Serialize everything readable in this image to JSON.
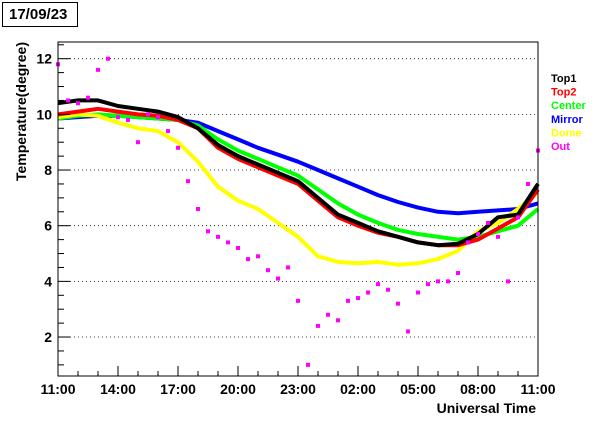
{
  "date_label": "17/09/23",
  "chart_data": {
    "type": "line",
    "title": "",
    "xlabel": "Universal Time",
    "ylabel": "Temperature(degree)",
    "x_ticks": [
      "11:00",
      "14:00",
      "17:00",
      "20:00",
      "23:00",
      "02:00",
      "05:00",
      "08:00",
      "11:00"
    ],
    "x_range_hours": [
      0,
      24
    ],
    "ylim": [
      0.6,
      12.6
    ],
    "y_ticks": [
      2,
      4,
      6,
      8,
      10,
      12
    ],
    "grid": "horizontal dotted",
    "legend_placement": "right",
    "series": [
      {
        "name": "Top1",
        "color": "#000000",
        "style": "line",
        "x": [
          0,
          1,
          2,
          3,
          4,
          5,
          6,
          7,
          8,
          9,
          10,
          11,
          12,
          13,
          14,
          15,
          16,
          17,
          18,
          19,
          20,
          21,
          22,
          23,
          24
        ],
        "y": [
          10.4,
          10.5,
          10.5,
          10.3,
          10.2,
          10.1,
          9.9,
          9.5,
          8.9,
          8.5,
          8.2,
          7.9,
          7.6,
          7.0,
          6.4,
          6.1,
          5.8,
          5.6,
          5.4,
          5.3,
          5.35,
          5.7,
          6.3,
          6.4,
          7.5
        ]
      },
      {
        "name": "Top2",
        "color": "#ff0000",
        "style": "line",
        "x": [
          0,
          1,
          2,
          3,
          4,
          5,
          6,
          7,
          8,
          9,
          10,
          11,
          12,
          13,
          14,
          15,
          16,
          17,
          18,
          19,
          20,
          21,
          22,
          23,
          24
        ],
        "y": [
          10.0,
          10.1,
          10.2,
          10.1,
          10.0,
          9.95,
          9.8,
          9.5,
          8.8,
          8.4,
          8.1,
          7.8,
          7.5,
          6.9,
          6.3,
          6.0,
          5.75,
          5.6,
          5.4,
          5.3,
          5.3,
          5.5,
          5.9,
          6.3,
          7.3
        ]
      },
      {
        "name": "Center",
        "color": "#00ff00",
        "style": "line",
        "x": [
          0,
          1,
          2,
          3,
          4,
          5,
          6,
          7,
          8,
          9,
          10,
          11,
          12,
          13,
          14,
          15,
          16,
          17,
          18,
          19,
          20,
          21,
          22,
          23,
          24
        ],
        "y": [
          9.85,
          9.95,
          10.0,
          9.95,
          9.9,
          9.85,
          9.8,
          9.6,
          9.1,
          8.7,
          8.4,
          8.1,
          7.8,
          7.3,
          6.8,
          6.4,
          6.1,
          5.85,
          5.7,
          5.6,
          5.5,
          5.6,
          5.8,
          6.0,
          6.6
        ]
      },
      {
        "name": "Mirror",
        "color": "#0000ff",
        "style": "line",
        "x": [
          0,
          1,
          2,
          3,
          4,
          5,
          6,
          7,
          8,
          9,
          10,
          11,
          12,
          13,
          14,
          15,
          16,
          17,
          18,
          19,
          20,
          21,
          22,
          23,
          24
        ],
        "y": [
          9.85,
          9.9,
          9.95,
          9.95,
          9.9,
          9.85,
          9.8,
          9.7,
          9.4,
          9.1,
          8.8,
          8.55,
          8.3,
          8.0,
          7.7,
          7.4,
          7.1,
          6.85,
          6.65,
          6.5,
          6.45,
          6.5,
          6.55,
          6.6,
          6.8
        ]
      },
      {
        "name": "Dome",
        "color": "#ffff00",
        "style": "line",
        "x": [
          0,
          1,
          2,
          3,
          4,
          5,
          6,
          7,
          8,
          9,
          10,
          11,
          12,
          13,
          14,
          15,
          16,
          17,
          18,
          19,
          20,
          21,
          22,
          23,
          24
        ],
        "y": [
          9.9,
          10.0,
          9.95,
          9.7,
          9.5,
          9.4,
          9.0,
          8.3,
          7.4,
          6.9,
          6.6,
          6.1,
          5.6,
          4.9,
          4.7,
          4.65,
          4.7,
          4.6,
          4.65,
          4.8,
          5.1,
          5.8,
          6.1,
          6.6,
          7.2
        ]
      },
      {
        "name": "Out",
        "color": "#ff00ff",
        "style": "points",
        "x": [
          0,
          0.5,
          1,
          1.5,
          2,
          2.5,
          3,
          3.5,
          4,
          4.5,
          5,
          5.5,
          6,
          6.5,
          7,
          7.5,
          8,
          8.5,
          9,
          9.5,
          10,
          10.5,
          11,
          11.5,
          12,
          12.5,
          13,
          13.5,
          14,
          14.5,
          15,
          15.5,
          16,
          16.5,
          17,
          17.5,
          18,
          18.5,
          19,
          19.5,
          20,
          20.5,
          21,
          21.5,
          22,
          22.5,
          23,
          23.5,
          24
        ],
        "y": [
          11.8,
          10.5,
          10.4,
          10.6,
          11.6,
          12.0,
          9.9,
          9.8,
          9.0,
          10.0,
          9.9,
          9.4,
          8.8,
          7.6,
          6.6,
          5.8,
          5.6,
          5.4,
          5.2,
          4.8,
          4.9,
          4.4,
          4.1,
          4.5,
          3.3,
          1.0,
          2.4,
          2.8,
          2.6,
          3.3,
          3.4,
          3.6,
          3.9,
          3.7,
          3.2,
          2.2,
          3.6,
          3.9,
          4.0,
          4.0,
          4.3,
          5.4,
          5.7,
          6.1,
          5.6,
          4.0,
          6.3,
          7.5,
          8.7
        ]
      }
    ]
  }
}
